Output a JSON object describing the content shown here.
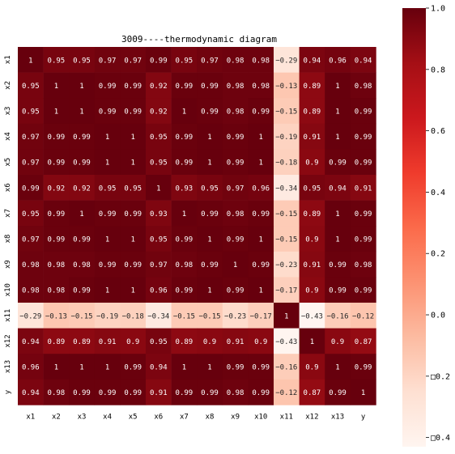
{
  "chart_data": {
    "type": "heatmap",
    "title": "3009----thermodynamic diagram",
    "xlabel": "",
    "ylabel": "",
    "labels": [
      "x1",
      "x2",
      "x3",
      "x4",
      "x5",
      "x6",
      "x7",
      "x8",
      "x9",
      "x10",
      "x11",
      "x12",
      "x13",
      "y"
    ],
    "matrix": [
      [
        1,
        0.95,
        0.95,
        0.97,
        0.97,
        0.99,
        0.95,
        0.97,
        0.98,
        0.98,
        -0.29,
        0.94,
        0.96,
        0.94
      ],
      [
        0.95,
        1,
        1,
        0.99,
        0.99,
        0.92,
        0.99,
        0.99,
        0.98,
        0.98,
        -0.13,
        0.89,
        1,
        0.98
      ],
      [
        0.95,
        1,
        1,
        0.99,
        0.99,
        0.92,
        1,
        0.99,
        0.98,
        0.99,
        -0.15,
        0.89,
        1,
        0.99
      ],
      [
        0.97,
        0.99,
        0.99,
        1,
        1,
        0.95,
        0.99,
        1,
        0.99,
        1,
        -0.19,
        0.91,
        1,
        0.99
      ],
      [
        0.97,
        0.99,
        0.99,
        1,
        1,
        0.95,
        0.99,
        1,
        0.99,
        1,
        -0.18,
        0.9,
        0.99,
        0.99
      ],
      [
        0.99,
        0.92,
        0.92,
        0.95,
        0.95,
        1,
        0.93,
        0.95,
        0.97,
        0.96,
        -0.34,
        0.95,
        0.94,
        0.91
      ],
      [
        0.95,
        0.99,
        1,
        0.99,
        0.99,
        0.93,
        1,
        0.99,
        0.98,
        0.99,
        -0.15,
        0.89,
        1,
        0.99
      ],
      [
        0.97,
        0.99,
        0.99,
        1,
        1,
        0.95,
        0.99,
        1,
        0.99,
        1,
        -0.15,
        0.9,
        1,
        0.99
      ],
      [
        0.98,
        0.98,
        0.98,
        0.99,
        0.99,
        0.97,
        0.98,
        0.99,
        1,
        0.99,
        -0.23,
        0.91,
        0.99,
        0.98
      ],
      [
        0.98,
        0.98,
        0.99,
        1,
        1,
        0.96,
        0.99,
        1,
        0.99,
        1,
        -0.17,
        0.9,
        0.99,
        0.99
      ],
      [
        -0.29,
        -0.13,
        -0.15,
        -0.19,
        -0.18,
        -0.34,
        -0.15,
        -0.15,
        -0.23,
        -0.17,
        1,
        -0.43,
        -0.16,
        -0.12
      ],
      [
        0.94,
        0.89,
        0.89,
        0.91,
        0.9,
        0.95,
        0.89,
        0.9,
        0.91,
        0.9,
        -0.43,
        1,
        0.9,
        0.87
      ],
      [
        0.96,
        1,
        1,
        1,
        0.99,
        0.94,
        1,
        1,
        0.99,
        0.99,
        -0.16,
        0.9,
        1,
        0.99
      ],
      [
        0.94,
        0.98,
        0.99,
        0.99,
        0.99,
        0.91,
        0.99,
        0.99,
        0.98,
        0.99,
        -0.12,
        0.87,
        0.99,
        1
      ]
    ],
    "vmin": -0.43,
    "vmax": 1,
    "colormap": "Reds",
    "colorbar_ticks": [
      1.0,
      0.8,
      0.6,
      0.4,
      0.2,
      0.0,
      -0.2,
      -0.4
    ],
    "colorbar_tick_labels": [
      "1.0",
      "0.8",
      "0.6",
      "0.4",
      "0.2",
      "0.0",
      "□0.2",
      "□0.4"
    ],
    "annotation_colors": {
      "on_dark": "#ffffff",
      "on_light": "#262626"
    }
  }
}
